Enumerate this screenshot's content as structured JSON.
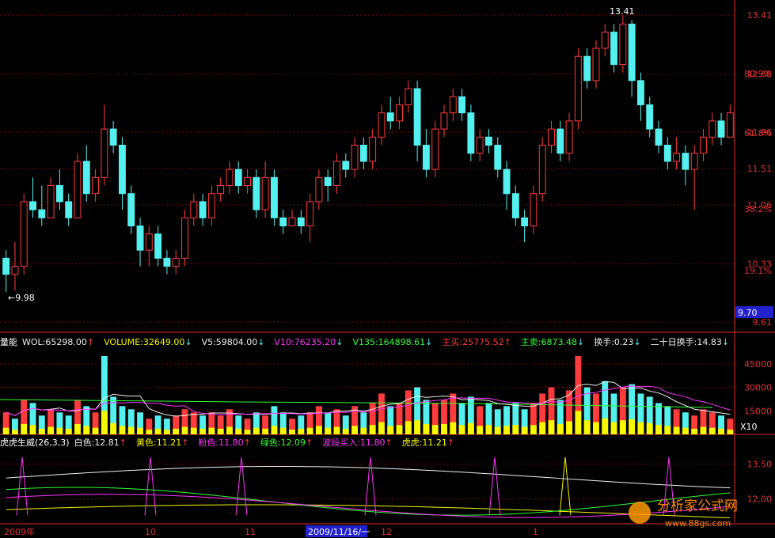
{
  "colors": {
    "up": "#ff3b3b",
    "down": "#54f0f0",
    "white": "#f0f0f0",
    "yellow": "#f7f700",
    "magenta": "#ff33ff",
    "green": "#33ff33",
    "grid": "#7a0000",
    "axis": "#e03030"
  },
  "price_axis": {
    "ticks": [
      "13.41",
      "12.68",
      "11.96",
      "11.51",
      "11.06",
      "10.33",
      "9.61"
    ],
    "pct": [
      "80.9%",
      "61.8%",
      "38.2%",
      "19.1%"
    ],
    "current": "9.70"
  },
  "annotations": {
    "high": "13.41",
    "low": "9.98"
  },
  "volume_legend": {
    "name": "量能",
    "items": [
      {
        "label": "WOL:65298.00",
        "arrow": "↑",
        "color": "#f0f0f0"
      },
      {
        "label": "VOLUME:32649.00",
        "arrow": "↓",
        "color": "#f7f700"
      },
      {
        "label": "V5:59804.00",
        "arrow": "↓",
        "color": "#f0f0f0"
      },
      {
        "label": "V10:76235.20",
        "arrow": "↓",
        "color": "#ff33ff"
      },
      {
        "label": "V135:164898.61",
        "arrow": "↓",
        "color": "#33ff33"
      },
      {
        "label": "主买:25775.52",
        "arrow": "↑",
        "color": "#ff3b3b"
      },
      {
        "label": "主卖:6873.48",
        "arrow": "↓",
        "color": "#33ff33"
      },
      {
        "label": "换手:0.23",
        "arrow": "↓",
        "color": "#f0f0f0"
      },
      {
        "label": "二十日换手:14.83",
        "arrow": "↓",
        "color": "#f0f0f0"
      }
    ],
    "axis": [
      "45000",
      "30000",
      "15000"
    ],
    "unit": "X10"
  },
  "indicator_legend": {
    "name": "虎虎生威(26,3,3)",
    "items": [
      {
        "label": "白色:12.81",
        "arrow": "↑",
        "color": "#f0f0f0"
      },
      {
        "label": "黄色:11.21",
        "arrow": "↑",
        "color": "#f7f700"
      },
      {
        "label": "粉色:11.80",
        "arrow": "↑",
        "color": "#ff33ff"
      },
      {
        "label": "绿色:12.09",
        "arrow": "↑",
        "color": "#33ff33"
      },
      {
        "label": "波段买入:11.80",
        "arrow": "↑",
        "color": "#ff33ff"
      },
      {
        "label": "虎虎:11.21",
        "arrow": "↑",
        "color": "#f7f700"
      }
    ],
    "axis": [
      "13.50",
      "12.00"
    ]
  },
  "x_axis": {
    "labels": [
      "2009年",
      "10",
      "11",
      "2009/11/16/一",
      "12",
      "1"
    ]
  },
  "watermark": {
    "text": "分析家公式网",
    "url": "www.88gs.com"
  },
  "chart_data": {
    "type": "candlestick",
    "ylim": [
      9.6,
      13.5
    ],
    "candles": [
      [
        10.4,
        10.2,
        10.5,
        9.98
      ],
      [
        10.2,
        10.3,
        10.6,
        10.0
      ],
      [
        10.3,
        11.1,
        11.2,
        10.2
      ],
      [
        11.1,
        11.0,
        11.4,
        10.9
      ],
      [
        11.0,
        10.9,
        11.3,
        10.8
      ],
      [
        10.9,
        11.3,
        11.4,
        10.9
      ],
      [
        11.3,
        11.1,
        11.5,
        11.0
      ],
      [
        11.1,
        10.9,
        11.2,
        10.8
      ],
      [
        10.9,
        11.6,
        11.7,
        10.9
      ],
      [
        11.6,
        11.2,
        11.8,
        11.1
      ],
      [
        11.2,
        11.4,
        11.5,
        11.1
      ],
      [
        11.4,
        12.0,
        12.3,
        11.3
      ],
      [
        12.0,
        11.8,
        12.1,
        11.7
      ],
      [
        11.8,
        11.2,
        11.9,
        11.0
      ],
      [
        11.2,
        10.8,
        11.3,
        10.7
      ],
      [
        10.8,
        10.5,
        10.9,
        10.3
      ],
      [
        10.5,
        10.7,
        10.8,
        10.3
      ],
      [
        10.7,
        10.4,
        10.8,
        10.3
      ],
      [
        10.4,
        10.3,
        10.5,
        10.2
      ],
      [
        10.3,
        10.4,
        10.5,
        10.2
      ],
      [
        10.4,
        10.9,
        11.0,
        10.3
      ],
      [
        10.9,
        11.1,
        11.2,
        10.8
      ],
      [
        11.1,
        10.9,
        11.2,
        10.8
      ],
      [
        10.9,
        11.2,
        11.3,
        10.8
      ],
      [
        11.2,
        11.3,
        11.4,
        11.1
      ],
      [
        11.3,
        11.5,
        11.6,
        11.2
      ],
      [
        11.5,
        11.3,
        11.6,
        11.2
      ],
      [
        11.3,
        11.4,
        11.5,
        11.2
      ],
      [
        11.4,
        11.0,
        11.5,
        10.9
      ],
      [
        11.0,
        11.4,
        11.6,
        10.9
      ],
      [
        11.4,
        10.9,
        11.5,
        10.8
      ],
      [
        10.9,
        10.8,
        11.0,
        10.7
      ],
      [
        10.8,
        10.9,
        11.0,
        10.8
      ],
      [
        10.9,
        10.8,
        11.0,
        10.7
      ],
      [
        10.8,
        11.1,
        11.2,
        10.6
      ],
      [
        11.1,
        11.4,
        11.5,
        11.0
      ],
      [
        11.4,
        11.3,
        11.5,
        11.1
      ],
      [
        11.3,
        11.6,
        11.7,
        11.2
      ],
      [
        11.6,
        11.5,
        11.7,
        11.4
      ],
      [
        11.5,
        11.8,
        11.9,
        11.4
      ],
      [
        11.8,
        11.6,
        11.9,
        11.5
      ],
      [
        11.6,
        11.9,
        12.0,
        11.5
      ],
      [
        11.9,
        12.2,
        12.3,
        11.8
      ],
      [
        12.2,
        12.1,
        12.4,
        12.0
      ],
      [
        12.1,
        12.3,
        12.4,
        12.0
      ],
      [
        12.3,
        12.5,
        12.6,
        12.2
      ],
      [
        12.5,
        11.8,
        12.6,
        11.6
      ],
      [
        11.8,
        11.5,
        12.0,
        11.4
      ],
      [
        11.5,
        12.0,
        12.1,
        11.4
      ],
      [
        12.0,
        12.2,
        12.3,
        11.9
      ],
      [
        12.2,
        12.4,
        12.5,
        12.1
      ],
      [
        12.4,
        12.2,
        12.5,
        12.1
      ],
      [
        12.2,
        11.7,
        12.3,
        11.6
      ],
      [
        11.7,
        11.9,
        12.0,
        11.6
      ],
      [
        11.9,
        11.8,
        12.0,
        11.7
      ],
      [
        11.8,
        11.5,
        11.9,
        11.4
      ],
      [
        11.5,
        11.2,
        11.6,
        11.0
      ],
      [
        11.2,
        10.9,
        11.3,
        10.8
      ],
      [
        10.9,
        10.8,
        11.0,
        10.6
      ],
      [
        10.8,
        11.2,
        11.3,
        10.7
      ],
      [
        11.2,
        11.8,
        11.9,
        11.1
      ],
      [
        11.8,
        12.0,
        12.1,
        11.7
      ],
      [
        12.0,
        11.7,
        12.1,
        11.6
      ],
      [
        11.7,
        12.1,
        12.2,
        11.6
      ],
      [
        12.1,
        12.9,
        13.0,
        12.0
      ],
      [
        12.9,
        12.6,
        13.0,
        12.5
      ],
      [
        12.6,
        13.0,
        13.1,
        12.5
      ],
      [
        13.0,
        13.2,
        13.3,
        12.9
      ],
      [
        13.2,
        12.8,
        13.3,
        12.7
      ],
      [
        12.8,
        13.3,
        13.41,
        12.7
      ],
      [
        13.3,
        12.6,
        13.35,
        12.4
      ],
      [
        12.6,
        12.3,
        12.7,
        12.1
      ],
      [
        12.3,
        12.0,
        12.4,
        11.9
      ],
      [
        12.0,
        11.8,
        12.1,
        11.7
      ],
      [
        11.8,
        11.6,
        11.9,
        11.5
      ],
      [
        11.6,
        11.7,
        11.9,
        11.5
      ],
      [
        11.7,
        11.5,
        11.8,
        11.3
      ],
      [
        11.5,
        11.7,
        11.8,
        11.0
      ],
      [
        11.7,
        11.9,
        12.0,
        11.6
      ],
      [
        11.9,
        12.1,
        12.2,
        11.8
      ],
      [
        12.1,
        11.9,
        12.2,
        11.8
      ],
      [
        11.9,
        12.2,
        12.3,
        11.9
      ]
    ],
    "volume": [
      [
        14,
        "r"
      ],
      [
        10,
        "c"
      ],
      [
        22,
        "r"
      ],
      [
        20,
        "c"
      ],
      [
        12,
        "c"
      ],
      [
        16,
        "r"
      ],
      [
        14,
        "c"
      ],
      [
        12,
        "c"
      ],
      [
        22,
        "r"
      ],
      [
        18,
        "c"
      ],
      [
        14,
        "r"
      ],
      [
        50,
        "c"
      ],
      [
        24,
        "c"
      ],
      [
        18,
        "c"
      ],
      [
        16,
        "c"
      ],
      [
        14,
        "c"
      ],
      [
        10,
        "r"
      ],
      [
        12,
        "c"
      ],
      [
        10,
        "c"
      ],
      [
        12,
        "r"
      ],
      [
        16,
        "r"
      ],
      [
        14,
        "r"
      ],
      [
        12,
        "c"
      ],
      [
        14,
        "r"
      ],
      [
        12,
        "r"
      ],
      [
        16,
        "r"
      ],
      [
        12,
        "c"
      ],
      [
        10,
        "r"
      ],
      [
        14,
        "c"
      ],
      [
        12,
        "r"
      ],
      [
        18,
        "c"
      ],
      [
        14,
        "c"
      ],
      [
        10,
        "r"
      ],
      [
        12,
        "c"
      ],
      [
        14,
        "r"
      ],
      [
        18,
        "r"
      ],
      [
        14,
        "c"
      ],
      [
        16,
        "r"
      ],
      [
        12,
        "c"
      ],
      [
        18,
        "r"
      ],
      [
        14,
        "c"
      ],
      [
        20,
        "r"
      ],
      [
        26,
        "r"
      ],
      [
        18,
        "c"
      ],
      [
        20,
        "r"
      ],
      [
        28,
        "r"
      ],
      [
        30,
        "c"
      ],
      [
        22,
        "c"
      ],
      [
        20,
        "r"
      ],
      [
        22,
        "r"
      ],
      [
        26,
        "r"
      ],
      [
        20,
        "c"
      ],
      [
        24,
        "c"
      ],
      [
        18,
        "r"
      ],
      [
        20,
        "c"
      ],
      [
        16,
        "c"
      ],
      [
        18,
        "c"
      ],
      [
        20,
        "c"
      ],
      [
        16,
        "c"
      ],
      [
        20,
        "r"
      ],
      [
        26,
        "r"
      ],
      [
        30,
        "r"
      ],
      [
        22,
        "c"
      ],
      [
        28,
        "r"
      ],
      [
        50,
        "r"
      ],
      [
        30,
        "c"
      ],
      [
        26,
        "r"
      ],
      [
        34,
        "c"
      ],
      [
        26,
        "c"
      ],
      [
        30,
        "r"
      ],
      [
        32,
        "c"
      ],
      [
        26,
        "c"
      ],
      [
        24,
        "c"
      ],
      [
        20,
        "c"
      ],
      [
        18,
        "c"
      ],
      [
        16,
        "r"
      ],
      [
        14,
        "c"
      ],
      [
        12,
        "r"
      ],
      [
        16,
        "r"
      ],
      [
        14,
        "r"
      ],
      [
        12,
        "c"
      ],
      [
        10,
        "r"
      ]
    ]
  }
}
